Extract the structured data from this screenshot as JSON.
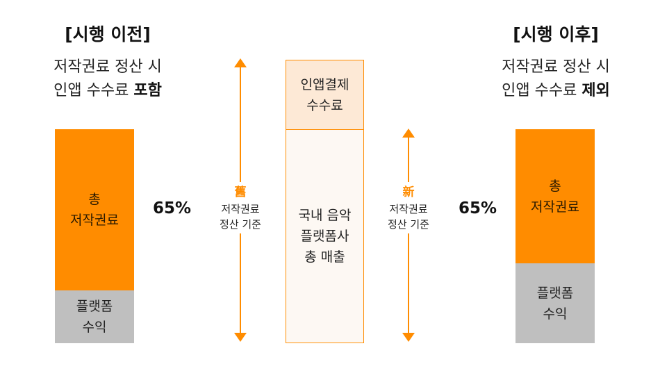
{
  "left": {
    "heading": "[시행 이전]",
    "desc_line1": "저작권료 정산 시",
    "desc_line2_normal": "인앱 수수료 ",
    "desc_line2_bold": "포함",
    "bar_top_line1": "총",
    "bar_top_line2": "저작권료",
    "bar_bottom_line1": "플랫폼",
    "bar_bottom_line2": "수익",
    "percent": "65%"
  },
  "old_axis": {
    "hanja": "舊",
    "line1": "저작권료",
    "line2": "정산 기준"
  },
  "center": {
    "top_line1": "인앱결제",
    "top_line2": "수수료",
    "bottom_line1": "국내 음악",
    "bottom_line2": "플랫폼사",
    "bottom_line3": "총 매출"
  },
  "new_axis": {
    "hanja": "新",
    "line1": "저작권료",
    "line2": "정산 기준"
  },
  "right": {
    "heading": "[시행 이후]",
    "desc_line1": "저작권료 정산 시",
    "desc_line2_normal": "인앱 수수료 ",
    "desc_line2_bold": "제외",
    "bar_top_line1": "총",
    "bar_top_line2": "저작권료",
    "bar_bottom_line1": "플랫폼",
    "bar_bottom_line2": "수익",
    "percent": "65%"
  },
  "colors": {
    "accent": "#ff8c00",
    "platform_gray": "#bfbfbf",
    "fee_fill": "#fde9d6"
  }
}
